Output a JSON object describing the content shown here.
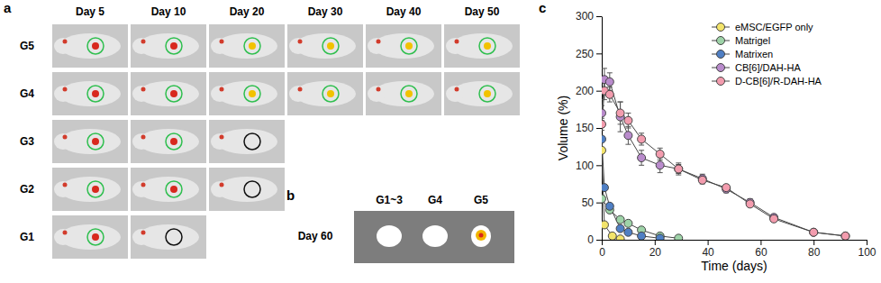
{
  "panel_labels": [
    "a",
    "b",
    "c"
  ],
  "panel_a": {
    "columns": [
      "Day 5",
      "Day 10",
      "Day 20",
      "Day 30",
      "Day 40",
      "Day 50"
    ],
    "rows": [
      "G5",
      "G4",
      "G3",
      "G2",
      "G1"
    ]
  },
  "panel_b": {
    "row_label": "Day 60",
    "labels": [
      "G1~3",
      "G4",
      "G5"
    ]
  },
  "chart_data": {
    "type": "line",
    "marker": "circle",
    "x_label": "Time (days)",
    "y_label": "Volume (%)",
    "xlim": [
      0,
      100
    ],
    "xticks": [
      0,
      20,
      40,
      60,
      80,
      100
    ],
    "ylim": [
      0,
      300
    ],
    "yticks": [
      0,
      50,
      100,
      150,
      200,
      250,
      300
    ],
    "legend": "upper right",
    "series": [
      {
        "name": "eMSC/EGFP only",
        "color": "#f3e46b",
        "x": [
          0,
          1,
          4,
          7
        ],
        "values": [
          120,
          20,
          5,
          1
        ]
      },
      {
        "name": "Matrigel",
        "color": "#9ed3a8",
        "x": [
          0,
          3,
          7,
          10,
          15,
          22,
          29
        ],
        "values": [
          55,
          40,
          27,
          22,
          13,
          5,
          2
        ]
      },
      {
        "name": "Matrixen",
        "color": "#4f7fc4",
        "x": [
          0,
          1,
          3,
          7,
          10,
          15,
          22
        ],
        "values": [
          135,
          70,
          45,
          15,
          10,
          5,
          2
        ]
      },
      {
        "name": "CB[6]/DAH-HA",
        "color": "#b98bcc",
        "x": [
          0,
          1,
          3,
          7,
          10,
          15,
          22,
          29,
          38,
          47,
          56,
          65,
          80,
          92
        ],
        "values": [
          170,
          215,
          212,
          165,
          140,
          110,
          100,
          95,
          82,
          68,
          50,
          30,
          10,
          5
        ],
        "errors": [
          10,
          15,
          12,
          20,
          12,
          10,
          10,
          8,
          6,
          5,
          5,
          4,
          3,
          2
        ]
      },
      {
        "name": "D-CB[6]/R-DAH-HA",
        "color": "#f39cae",
        "x": [
          0,
          1,
          3,
          7,
          10,
          15,
          22,
          29,
          38,
          47,
          56,
          65,
          80,
          92
        ],
        "values": [
          155,
          200,
          195,
          170,
          160,
          135,
          115,
          95,
          80,
          70,
          48,
          28,
          10,
          5
        ],
        "errors": [
          8,
          12,
          10,
          15,
          10,
          8,
          8,
          6,
          5,
          4,
          4,
          3,
          2,
          2
        ]
      }
    ]
  }
}
